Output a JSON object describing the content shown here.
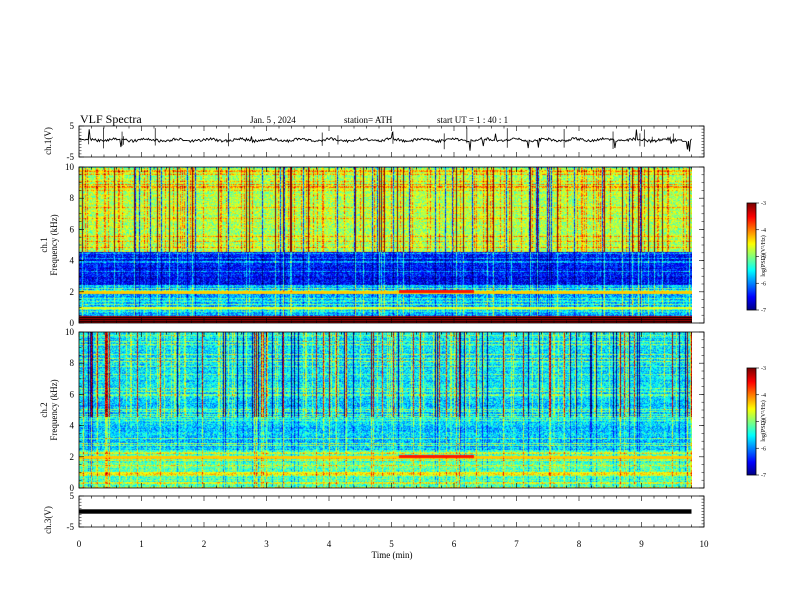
{
  "header": {
    "title": "VLF  Spectra",
    "date": "Jan.  5  , 2024",
    "station": "station= ATH",
    "start": "start  UT  =    1  : 40 : 1"
  },
  "chart_data": [
    {
      "type": "line",
      "name": "ch1-waveform",
      "ylabel": "ch.1(V)",
      "ylim": [
        -5,
        5
      ],
      "y_ticks": [
        "5",
        "-5"
      ],
      "x_range_min": [
        0,
        10
      ],
      "data_end_min": 9.8,
      "color": "#000000",
      "approx_level_v": 0.5
    },
    {
      "type": "heatmap",
      "name": "ch1-spectrogram",
      "ylabel": "ch.1\nFrequency  (kHz)",
      "ylim": [
        0,
        10
      ],
      "y_ticks": [
        "0",
        "2",
        "4",
        "6",
        "8",
        "10"
      ],
      "x_range_min": [
        0,
        10
      ],
      "data_end_min": 9.8,
      "colorbar": {
        "label": "log(PSD)(V²/Hz)",
        "range": [
          -7,
          -3
        ],
        "ticks": [
          "-3",
          "-4",
          "-5",
          "-6",
          "-7"
        ]
      },
      "features": [
        {
          "band_khz": [
            0,
            0.5
          ],
          "level": "saturated black/red interference lines"
        },
        {
          "band_khz": [
            0.5,
            2.5
          ],
          "level": -5.8
        },
        {
          "band_khz": [
            2.5,
            4.6
          ],
          "level": -6.5
        },
        {
          "band_khz": [
            4.6,
            10
          ],
          "level": -4.8
        },
        {
          "note": "enhanced line near 2.1 kHz",
          "time_min": [
            5.1,
            6.3
          ]
        }
      ]
    },
    {
      "type": "heatmap",
      "name": "ch2-spectrogram",
      "ylabel": "ch.2\nFrequency  (kHz)",
      "ylim": [
        0,
        10
      ],
      "y_ticks": [
        "0",
        "2",
        "4",
        "6",
        "8",
        "10"
      ],
      "x_range_min": [
        0,
        10
      ],
      "data_end_min": 9.8,
      "colorbar": {
        "label": "log(PSD)(V²/Hz)",
        "range": [
          -7,
          -3
        ],
        "ticks": [
          "-3",
          "-4",
          "-5",
          "-6",
          "-7"
        ]
      },
      "features": [
        {
          "band_khz": [
            0,
            2.5
          ],
          "level": -5.2
        },
        {
          "band_khz": [
            2.5,
            5.5
          ],
          "level": -5.7
        },
        {
          "band_khz": [
            5.5,
            10
          ],
          "level": -5.6
        },
        {
          "note": "enhanced line near 2.0 kHz",
          "time_min": [
            5.1,
            6.3
          ]
        }
      ]
    },
    {
      "type": "line",
      "name": "ch3-waveform",
      "ylabel": "ch.3(V)",
      "ylim": [
        -5,
        5
      ],
      "y_ticks": [
        "5",
        "-5"
      ],
      "x_range_min": [
        0,
        10
      ],
      "data_end_min": 9.8,
      "color": "#000000",
      "approx_level_v": 0
    }
  ],
  "x_axis": {
    "label": "Time  (min)",
    "ticks": [
      "0",
      "1",
      "2",
      "3",
      "4",
      "5",
      "6",
      "7",
      "8",
      "9",
      "10"
    ]
  }
}
